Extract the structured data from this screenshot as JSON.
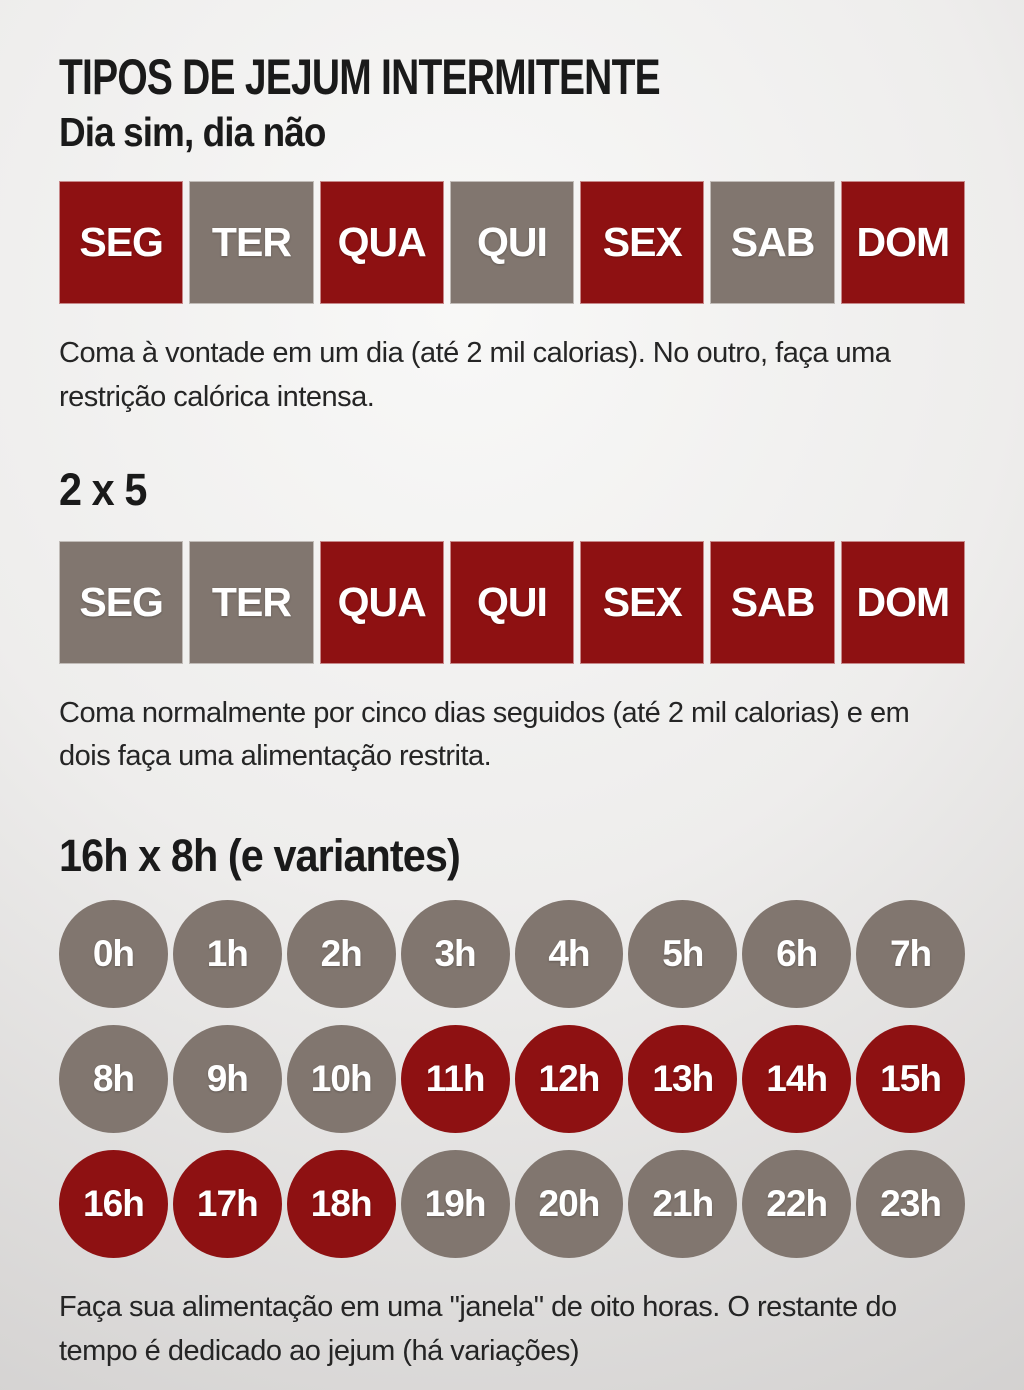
{
  "colors": {
    "red": "#8e1112",
    "gray": "#81766f",
    "heading": "#1a1a1a",
    "text": "#252525",
    "white": "#ffffff",
    "bg_light": "#f8f8f7",
    "bg_dark": "#d0cecd"
  },
  "header": {
    "title": "TIPOS DE JEJUM INTERMITENTE"
  },
  "sections": {
    "alternate": {
      "heading": "Dia sim, dia não",
      "days": [
        {
          "label": "SEG",
          "state": "red"
        },
        {
          "label": "TER",
          "state": "gray"
        },
        {
          "label": "QUA",
          "state": "red"
        },
        {
          "label": "QUI",
          "state": "gray"
        },
        {
          "label": "SEX",
          "state": "red"
        },
        {
          "label": "SAB",
          "state": "gray"
        },
        {
          "label": "DOM",
          "state": "red"
        }
      ],
      "description": "Coma à vontade em um dia (até 2 mil calorias). No outro, faça uma restrição calórica intensa."
    },
    "two_by_five": {
      "heading": "2 x 5",
      "days": [
        {
          "label": "SEG",
          "state": "gray"
        },
        {
          "label": "TER",
          "state": "gray"
        },
        {
          "label": "QUA",
          "state": "red"
        },
        {
          "label": "QUI",
          "state": "red"
        },
        {
          "label": "SEX",
          "state": "red"
        },
        {
          "label": "SAB",
          "state": "red"
        },
        {
          "label": "DOM",
          "state": "red"
        }
      ],
      "description": "Coma normalmente por cinco dias seguidos (até 2 mil calorias) e em dois faça uma alimentação restrita."
    },
    "sixteen_eight": {
      "heading": "16h x 8h (e variantes)",
      "hour_rows": [
        [
          {
            "label": "0h",
            "state": "gray"
          },
          {
            "label": "1h",
            "state": "gray"
          },
          {
            "label": "2h",
            "state": "gray"
          },
          {
            "label": "3h",
            "state": "gray"
          },
          {
            "label": "4h",
            "state": "gray"
          },
          {
            "label": "5h",
            "state": "gray"
          },
          {
            "label": "6h",
            "state": "gray"
          },
          {
            "label": "7h",
            "state": "gray"
          }
        ],
        [
          {
            "label": "8h",
            "state": "gray"
          },
          {
            "label": "9h",
            "state": "gray"
          },
          {
            "label": "10h",
            "state": "gray"
          },
          {
            "label": "11h",
            "state": "red"
          },
          {
            "label": "12h",
            "state": "red"
          },
          {
            "label": "13h",
            "state": "red"
          },
          {
            "label": "14h",
            "state": "red"
          },
          {
            "label": "15h",
            "state": "red"
          }
        ],
        [
          {
            "label": "16h",
            "state": "red"
          },
          {
            "label": "17h",
            "state": "red"
          },
          {
            "label": "18h",
            "state": "red"
          },
          {
            "label": "19h",
            "state": "gray"
          },
          {
            "label": "20h",
            "state": "gray"
          },
          {
            "label": "21h",
            "state": "gray"
          },
          {
            "label": "22h",
            "state": "gray"
          },
          {
            "label": "23h",
            "state": "gray"
          }
        ]
      ],
      "description": "Faça sua alimentação em uma \"janela\" de oito horas. O restante do tempo é dedicado ao jejum (há variações)"
    }
  }
}
